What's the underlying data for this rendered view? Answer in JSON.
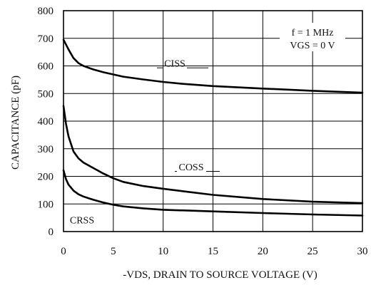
{
  "chart_data": {
    "type": "line",
    "title": "",
    "xlabel": "-VDS, DRAIN TO SOURCE VOLTAGE (V)",
    "ylabel": "CAPACITANCE (pF)",
    "xlim": [
      0,
      30
    ],
    "ylim": [
      0,
      800
    ],
    "x_ticks": [
      0,
      5,
      10,
      15,
      20,
      25,
      30
    ],
    "y_ticks": [
      0,
      100,
      200,
      300,
      400,
      500,
      600,
      700,
      800
    ],
    "x_tick_labels": [
      "0",
      "5",
      "10",
      "15",
      "20",
      "25",
      "30"
    ],
    "y_tick_labels": [
      "0",
      "100",
      "200",
      "300",
      "400",
      "500",
      "600",
      "700",
      "800"
    ],
    "grid": true,
    "legend": "none",
    "annotations": [
      "f = 1 MHz",
      "VGS = 0 V"
    ],
    "series": [
      {
        "name": "CISS",
        "x": [
          0,
          0.5,
          1,
          1.5,
          2,
          3,
          4,
          5,
          6,
          8,
          10,
          12,
          15,
          20,
          25,
          30
        ],
        "y": [
          695,
          660,
          628,
          610,
          600,
          587,
          577,
          569,
          561,
          551,
          542,
          535,
          527,
          518,
          510,
          503
        ]
      },
      {
        "name": "COSS",
        "x": [
          0,
          0.25,
          0.5,
          1,
          1.5,
          2,
          3,
          4,
          5,
          6,
          8,
          10,
          12,
          15,
          20,
          25,
          30
        ],
        "y": [
          455,
          390,
          345,
          290,
          265,
          250,
          230,
          210,
          193,
          180,
          165,
          155,
          146,
          133,
          118,
          108,
          103
        ]
      },
      {
        "name": "CRSS",
        "x": [
          0,
          0.25,
          0.5,
          1,
          1.5,
          2,
          3,
          4,
          5,
          6,
          8,
          10,
          15,
          20,
          25,
          30
        ],
        "y": [
          222,
          190,
          170,
          148,
          135,
          127,
          115,
          105,
          97,
          91,
          84,
          79,
          73,
          67,
          62,
          58
        ]
      }
    ]
  }
}
